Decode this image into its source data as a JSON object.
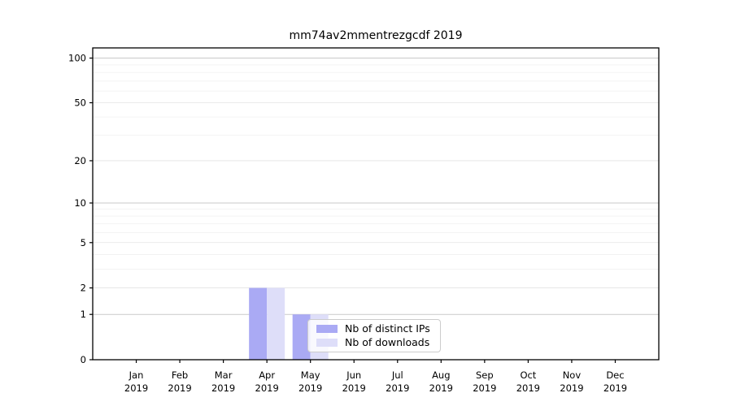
{
  "title": "mm74av2mmentrezgcdf 2019",
  "chart_data": {
    "type": "bar",
    "title": "mm74av2mmentrezgcdf 2019",
    "categories": [
      "Jan",
      "Feb",
      "Mar",
      "Apr",
      "May",
      "Jun",
      "Jul",
      "Aug",
      "Sep",
      "Oct",
      "Nov",
      "Dec"
    ],
    "x_sublabel_year": "2019",
    "series": [
      {
        "name": "Nb of distinct IPs",
        "color": "#aaaaf4",
        "values": [
          0,
          0,
          0,
          2,
          1,
          0,
          0,
          0,
          0,
          0,
          0,
          0
        ]
      },
      {
        "name": "Nb of downloads",
        "color": "#dedef9",
        "values": [
          0,
          0,
          0,
          2,
          1,
          0,
          0,
          0,
          0,
          0,
          0,
          0
        ]
      }
    ],
    "yscale": "log1p",
    "ylim": [
      0,
      117
    ],
    "yticks": [
      0,
      1,
      2,
      5,
      10,
      20,
      50,
      100
    ],
    "ygrid_major": [
      1,
      10,
      100
    ],
    "ygrid_mid": [
      2,
      5,
      20,
      50
    ],
    "ygrid_minor": [
      3,
      4,
      6,
      7,
      8,
      9,
      30,
      40,
      60,
      70,
      80,
      90
    ],
    "grid": "y-only",
    "legend_position": "inside lower-center",
    "colors": {
      "axis": "#000000",
      "grid_major": "#c9c9c9",
      "grid_mid": "#e3e3e3",
      "grid_minor": "#f0f0f0",
      "background": "#ffffff"
    }
  }
}
